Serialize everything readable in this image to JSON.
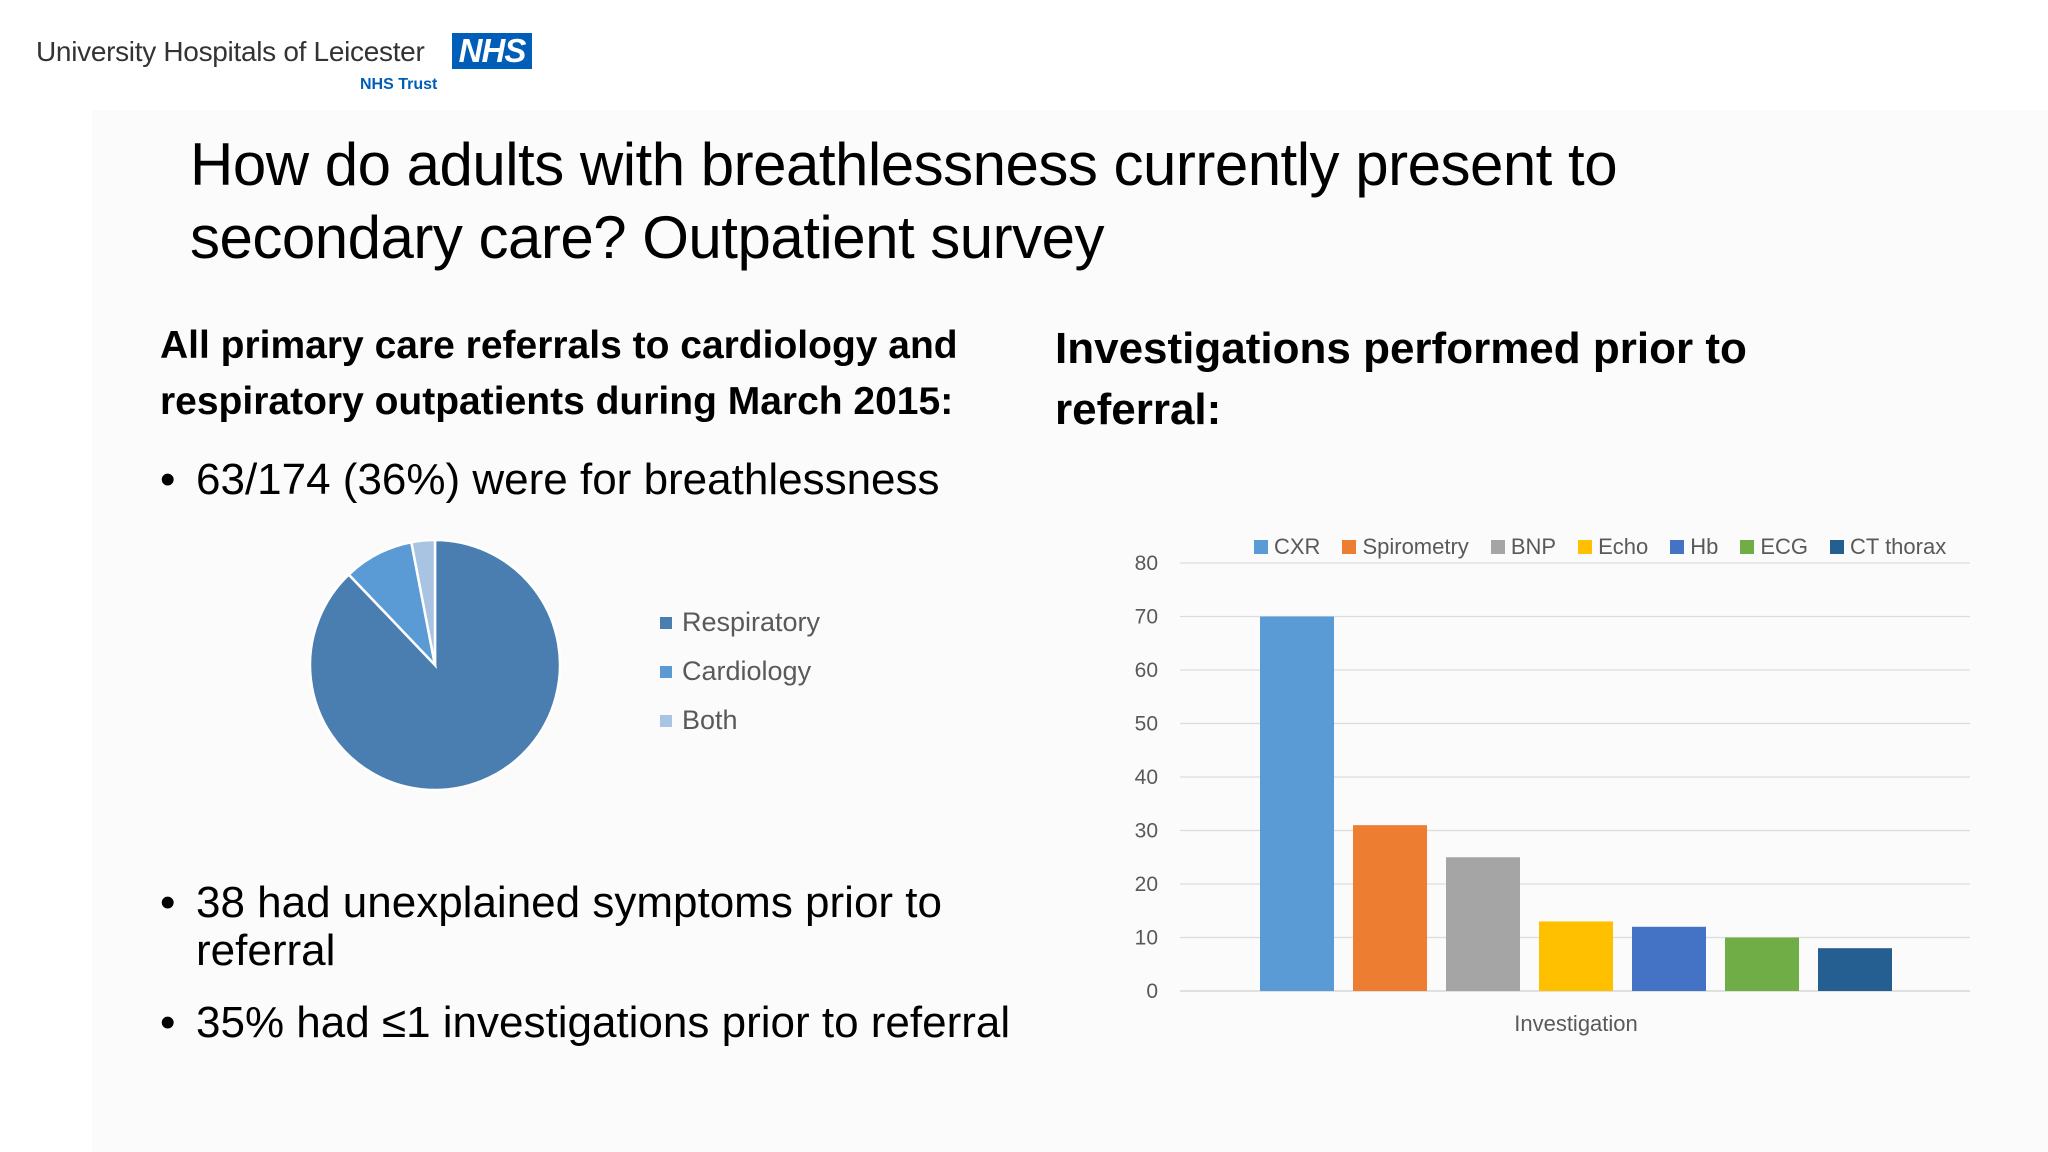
{
  "logo": {
    "org": "University Hospitals of Leicester",
    "nhs": "NHS",
    "trust": "NHS Trust"
  },
  "slide": {
    "title": "How do adults with breathlessness currently present to secondary care? Outpatient survey",
    "left_heading": "All primary care referrals to cardiology and respiratory outpatients during March 2015:",
    "bullet1": "63/174 (36%) were for breathlessness",
    "bullet2": "38 had unexplained symptoms prior to referral",
    "bullet3": "35% had ≤1 investigations prior to referral",
    "bullet_char": "•",
    "right_heading": "Investigations performed prior to referral:"
  },
  "chart_data": [
    {
      "type": "pie",
      "title": "",
      "slices": [
        {
          "label": "Respiratory",
          "value": 87,
          "color": "#4a7eb0"
        },
        {
          "label": "Cardiology",
          "value": 9,
          "color": "#5b9bd5"
        },
        {
          "label": "Both",
          "value": 3,
          "color": "#a9c4e2"
        }
      ],
      "legend_position": "right"
    },
    {
      "type": "bar",
      "title": "",
      "xlabel": "Investigation",
      "ylabel": "",
      "ylim": [
        0,
        80
      ],
      "yticks": [
        0,
        10,
        20,
        30,
        40,
        50,
        60,
        70,
        80
      ],
      "grid": true,
      "legend_position": "top",
      "series": [
        {
          "name": "CXR",
          "value": 70,
          "color": "#5b9bd5"
        },
        {
          "name": "Spirometry",
          "value": 31,
          "color": "#ed7d31"
        },
        {
          "name": "BNP",
          "value": 25,
          "color": "#a5a5a5"
        },
        {
          "name": "Echo",
          "value": 13,
          "color": "#ffc000"
        },
        {
          "name": "Hb",
          "value": 12,
          "color": "#4472c4"
        },
        {
          "name": "ECG",
          "value": 10,
          "color": "#70ad47"
        },
        {
          "name": "CT thorax",
          "value": 8,
          "color": "#255e91"
        }
      ]
    }
  ]
}
